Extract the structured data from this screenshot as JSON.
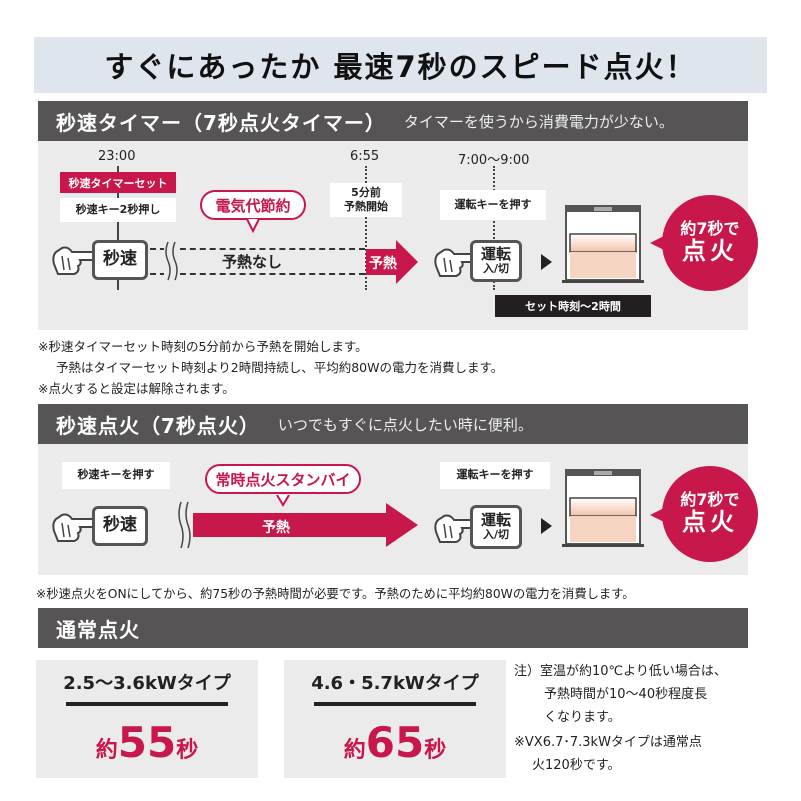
{
  "title": "すぐにあったか 最速7秒のスピード点火！",
  "section1": {
    "heading": "秒速タイマー（7秒点火タイマー）",
    "subtitle": "タイマーを使うから消費電力が少ない。",
    "time_start": "23:00",
    "time_preheat": "6:55",
    "time_on": "7:00～9:00",
    "timer_set_label": "秒速タイマーセット",
    "hold_label": "秒速キー2秒押し",
    "saving_balloon": "電気代節約",
    "byosoku_button": "秒速",
    "no_preheat": "予熱なし",
    "preheat_start": [
      "5分前",
      "予熱開始"
    ],
    "preheat_arrow": "予熱",
    "press_run": "運転キーを押す",
    "run_button": [
      "運転",
      "入/切"
    ],
    "ignite": [
      "約7秒で",
      "点火"
    ],
    "duration_bar": "セット時刻～2時間",
    "notes": [
      "※秒速タイマーセット時刻の5分前から予熱を開始します。",
      "予熱はタイマーセット時刻より2時間持続し、平均約80Wの電力を消費します。",
      "※点火すると設定は解除されます。"
    ]
  },
  "section2": {
    "heading": "秒速点火（7秒点火）",
    "subtitle": "いつでもすぐに点火したい時に便利。",
    "press_byosoku": "秒速キーを押す",
    "standby_balloon": "常時点火スタンバイ",
    "byosoku_button": "秒速",
    "preheat_arrow": "予熱",
    "press_run": "運転キーを押す",
    "run_button": [
      "運転",
      "入/切"
    ],
    "ignite": [
      "約7秒で",
      "点火"
    ],
    "note": "※秒速点火をONにしてから、約75秒の予熱時間が必要です。予熱のために平均約80Wの電力を消費します。"
  },
  "section3": {
    "heading": "通常点火",
    "types": [
      {
        "kw": "2.5～3.6kWタイプ",
        "prefix": "約",
        "seconds": "55",
        "suffix": "秒"
      },
      {
        "kw": "4.6・5.7kWタイプ",
        "prefix": "約",
        "seconds": "65",
        "suffix": "秒"
      }
    ],
    "notes": [
      "注）室温が約10℃より低い場合は、",
      "予熱時間が10～40秒程度長",
      "くなります。",
      "※VX6.7･7.3kWタイプは通常点",
      "火120秒です。"
    ]
  },
  "colors": {
    "accent": "#c8174a",
    "header": "#565454",
    "panel": "#ebebeb",
    "title_bg": "#dfe5ec"
  }
}
